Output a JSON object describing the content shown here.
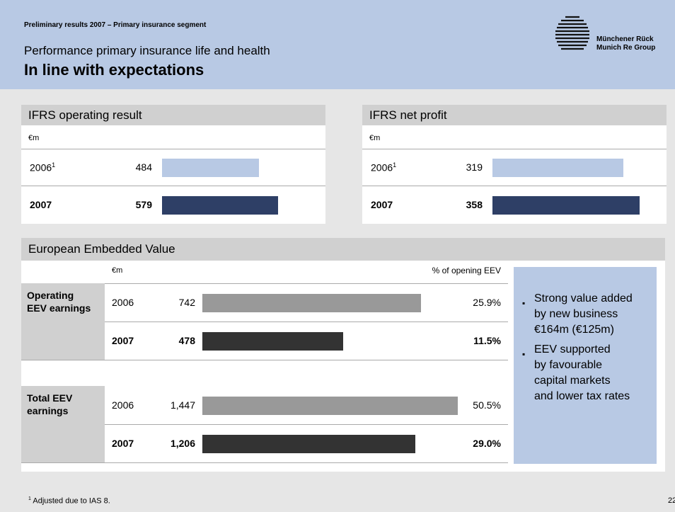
{
  "header": {
    "kicker": "Preliminary results 2007 – Primary insurance segment",
    "subtitle": "Performance primary insurance life and health",
    "title": "In line with expectations"
  },
  "logo": {
    "line1": "Münchener Rück",
    "line2": "Munich Re Group"
  },
  "panels": [
    {
      "title": "IFRS operating result",
      "unit": "€m",
      "rows": [
        {
          "year": "2006",
          "ref": "1",
          "value": 484,
          "color": "#b8c9e4"
        },
        {
          "year": "2007",
          "value": 579,
          "color": "#2e3f66"
        }
      ]
    },
    {
      "title": "IFRS net profit",
      "unit": "€m",
      "rows": [
        {
          "year": "2006",
          "ref": "1",
          "value": 319,
          "color": "#b8c9e4"
        },
        {
          "year": "2007",
          "value": 358,
          "color": "#2e3f66"
        }
      ]
    }
  ],
  "eev": {
    "title": "European Embedded Value",
    "unit": "€m",
    "pct_header": "% of opening EEV",
    "groups": [
      {
        "label": "Operating EEV earnings",
        "rows": [
          {
            "year": "2006",
            "value": 742,
            "pct": 25.9,
            "pct_label": "25.9%",
            "color": "#999999"
          },
          {
            "year": "2007",
            "value": 478,
            "pct": 11.5,
            "pct_label": "11.5%",
            "color": "#333333"
          }
        ]
      },
      {
        "label": "Total EEV earnings",
        "rows": [
          {
            "year": "2006",
            "value": 1447,
            "value_label": "1,447",
            "pct": 50.5,
            "pct_label": "50.5%",
            "color": "#999999"
          },
          {
            "year": "2007",
            "value": 1206,
            "value_label": "1,206",
            "pct": 29.0,
            "pct_label": "29.0%",
            "color": "#333333"
          }
        ]
      }
    ],
    "bullets": [
      [
        "Strong value added",
        "by new business",
        "€164m (€125m)"
      ],
      [
        "EEV supported",
        "by favourable",
        "capital markets",
        "and lower tax rates"
      ]
    ]
  },
  "footnote": {
    "ref": "1",
    "text": "Adjusted due to IAS 8."
  },
  "page": "22"
}
